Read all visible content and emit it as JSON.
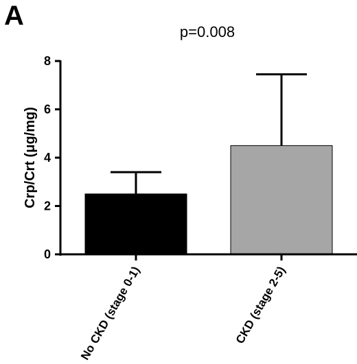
{
  "panel_label": "A",
  "annotation": "p=0.008",
  "chart_data": {
    "type": "bar",
    "categories": [
      "No CKD (stage 0-1)",
      "CKD (stage 2-5)"
    ],
    "values": [
      2.5,
      4.5
    ],
    "error_upper": [
      3.4,
      7.45
    ],
    "bar_colors": [
      "#000000",
      "#a6a6a6"
    ],
    "title": "",
    "xlabel": "",
    "ylabel": "Crp/Crt (μg/mg)",
    "ylim": [
      0,
      8
    ],
    "yticks": [
      0,
      2,
      4,
      6,
      8
    ],
    "grid": false
  }
}
